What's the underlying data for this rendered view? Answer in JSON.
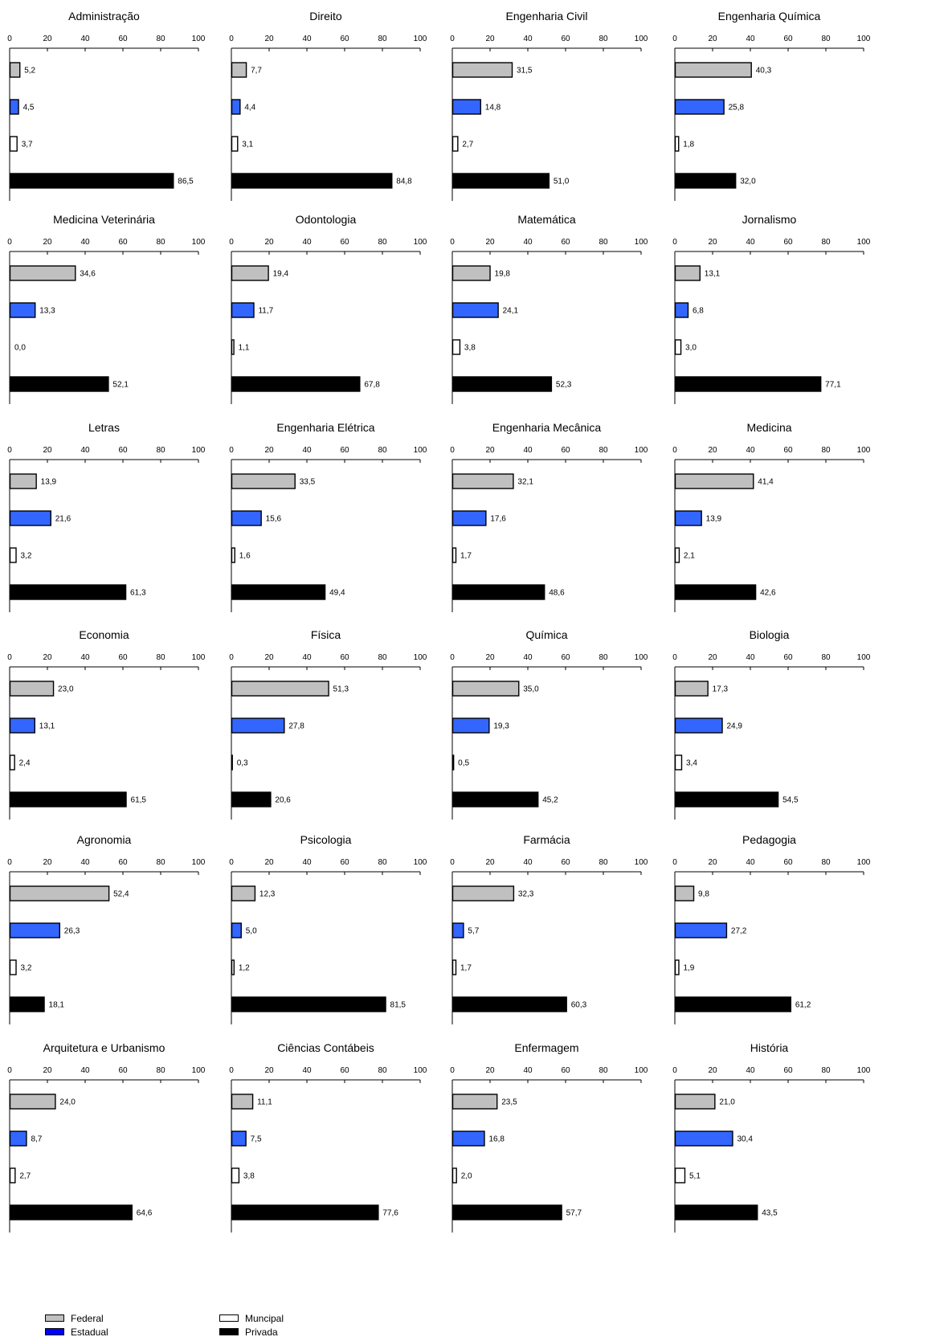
{
  "legend": {
    "federal": "Federal",
    "estadual": "Estadual",
    "municipal": "Muncipal",
    "privada": "Privada"
  },
  "colors": {
    "federal": "#c0c0c0",
    "estadual": "#3366ff",
    "municipal": "#ffffff",
    "privada": "#000000",
    "legend_estadual": "#0000ff"
  },
  "chart_data": [
    {
      "type": "bar",
      "orientation": "horizontal",
      "title": "Administração",
      "categories": [
        "Federal",
        "Estadual",
        "Municipal",
        "Privada"
      ],
      "values": [
        5.2,
        4.5,
        3.7,
        86.5
      ],
      "labels": [
        "5,2",
        "4,5",
        "3,7",
        "86,5"
      ],
      "xlim": [
        0,
        100
      ],
      "ticks": [
        "0",
        "20",
        "40",
        "60",
        "80",
        "100"
      ],
      "legend": "bottom-left"
    },
    {
      "type": "bar",
      "orientation": "horizontal",
      "title": "Direito",
      "categories": [
        "Federal",
        "Estadual",
        "Municipal",
        "Privada"
      ],
      "values": [
        7.7,
        4.4,
        3.1,
        84.8
      ],
      "labels": [
        "7,7",
        "4,4",
        "3,1",
        "84,8"
      ],
      "xlim": [
        0,
        100
      ],
      "ticks": [
        "0",
        "20",
        "40",
        "60",
        "80",
        "100"
      ]
    },
    {
      "type": "bar",
      "orientation": "horizontal",
      "title": "Engenharia Civil",
      "categories": [
        "Federal",
        "Estadual",
        "Municipal",
        "Privada"
      ],
      "values": [
        31.5,
        14.8,
        2.7,
        51.0
      ],
      "labels": [
        "31,5",
        "14,8",
        "2,7",
        "51,0"
      ],
      "xlim": [
        0,
        100
      ],
      "ticks": [
        "0",
        "20",
        "40",
        "60",
        "80",
        "100"
      ]
    },
    {
      "type": "bar",
      "orientation": "horizontal",
      "title": "Engenharia Química",
      "categories": [
        "Federal",
        "Estadual",
        "Municipal",
        "Privada"
      ],
      "values": [
        40.3,
        25.8,
        1.8,
        32.0
      ],
      "labels": [
        "40,3",
        "25,8",
        "1,8",
        "32,0"
      ],
      "xlim": [
        0,
        100
      ],
      "ticks": [
        "0",
        "20",
        "40",
        "60",
        "80",
        "100"
      ]
    },
    {
      "type": "bar",
      "orientation": "horizontal",
      "title": "Medicina Veterinária",
      "categories": [
        "Federal",
        "Estadual",
        "Municipal",
        "Privada"
      ],
      "values": [
        34.6,
        13.3,
        0.0,
        52.1
      ],
      "labels": [
        "34,6",
        "13,3",
        "0,0",
        "52,1"
      ],
      "xlim": [
        0,
        100
      ],
      "ticks": [
        "0",
        "20",
        "40",
        "60",
        "80",
        "100"
      ]
    },
    {
      "type": "bar",
      "orientation": "horizontal",
      "title": "Odontologia",
      "categories": [
        "Federal",
        "Estadual",
        "Municipal",
        "Privada"
      ],
      "values": [
        19.4,
        11.7,
        1.1,
        67.8
      ],
      "labels": [
        "19,4",
        "11,7",
        "1,1",
        "67,8"
      ],
      "xlim": [
        0,
        100
      ],
      "ticks": [
        "0",
        "20",
        "40",
        "60",
        "80",
        "100"
      ]
    },
    {
      "type": "bar",
      "orientation": "horizontal",
      "title": "Matemática",
      "categories": [
        "Federal",
        "Estadual",
        "Municipal",
        "Privada"
      ],
      "values": [
        19.8,
        24.1,
        3.8,
        52.3
      ],
      "labels": [
        "19,8",
        "24,1",
        "3,8",
        "52,3"
      ],
      "xlim": [
        0,
        100
      ],
      "ticks": [
        "0",
        "20",
        "40",
        "60",
        "80",
        "100"
      ]
    },
    {
      "type": "bar",
      "orientation": "horizontal",
      "title": "Jornalismo",
      "categories": [
        "Federal",
        "Estadual",
        "Municipal",
        "Privada"
      ],
      "values": [
        13.1,
        6.8,
        3.0,
        77.1
      ],
      "labels": [
        "13,1",
        "6,8",
        "3,0",
        "77,1"
      ],
      "xlim": [
        0,
        100
      ],
      "ticks": [
        "0",
        "20",
        "40",
        "60",
        "80",
        "100"
      ]
    },
    {
      "type": "bar",
      "orientation": "horizontal",
      "title": "Letras",
      "categories": [
        "Federal",
        "Estadual",
        "Municipal",
        "Privada"
      ],
      "values": [
        13.9,
        21.6,
        3.2,
        61.3
      ],
      "labels": [
        "13,9",
        "21,6",
        "3,2",
        "61,3"
      ],
      "xlim": [
        0,
        100
      ],
      "ticks": [
        "0",
        "20",
        "40",
        "60",
        "80",
        "100"
      ]
    },
    {
      "type": "bar",
      "orientation": "horizontal",
      "title": "Engenharia Elétrica",
      "categories": [
        "Federal",
        "Estadual",
        "Municipal",
        "Privada"
      ],
      "values": [
        33.5,
        15.6,
        1.6,
        49.4
      ],
      "labels": [
        "33,5",
        "15,6",
        "1,6",
        "49,4"
      ],
      "xlim": [
        0,
        100
      ],
      "ticks": [
        "0",
        "20",
        "40",
        "60",
        "80",
        "100"
      ]
    },
    {
      "type": "bar",
      "orientation": "horizontal",
      "title": "Engenharia Mecânica",
      "categories": [
        "Federal",
        "Estadual",
        "Municipal",
        "Privada"
      ],
      "values": [
        32.1,
        17.6,
        1.7,
        48.6
      ],
      "labels": [
        "32,1",
        "17,6",
        "1,7",
        "48,6"
      ],
      "xlim": [
        0,
        100
      ],
      "ticks": [
        "0",
        "20",
        "40",
        "60",
        "80",
        "100"
      ]
    },
    {
      "type": "bar",
      "orientation": "horizontal",
      "title": "Medicina",
      "categories": [
        "Federal",
        "Estadual",
        "Municipal",
        "Privada"
      ],
      "values": [
        41.4,
        13.9,
        2.1,
        42.6
      ],
      "labels": [
        "41,4",
        "13,9",
        "2,1",
        "42,6"
      ],
      "xlim": [
        0,
        100
      ],
      "ticks": [
        "0",
        "20",
        "40",
        "60",
        "80",
        "100"
      ]
    },
    {
      "type": "bar",
      "orientation": "horizontal",
      "title": "Economia",
      "categories": [
        "Federal",
        "Estadual",
        "Municipal",
        "Privada"
      ],
      "values": [
        23.0,
        13.1,
        2.4,
        61.5
      ],
      "labels": [
        "23,0",
        "13,1",
        "2,4",
        "61,5"
      ],
      "xlim": [
        0,
        100
      ],
      "ticks": [
        "0",
        "20",
        "40",
        "60",
        "80",
        "100"
      ]
    },
    {
      "type": "bar",
      "orientation": "horizontal",
      "title": "Física",
      "categories": [
        "Federal",
        "Estadual",
        "Municipal",
        "Privada"
      ],
      "values": [
        51.3,
        27.8,
        0.3,
        20.6
      ],
      "labels": [
        "51,3",
        "27,8",
        "0,3",
        "20,6"
      ],
      "xlim": [
        0,
        100
      ],
      "ticks": [
        "0",
        "20",
        "40",
        "60",
        "80",
        "100"
      ]
    },
    {
      "type": "bar",
      "orientation": "horizontal",
      "title": "Química",
      "categories": [
        "Federal",
        "Estadual",
        "Municipal",
        "Privada"
      ],
      "values": [
        35.0,
        19.3,
        0.5,
        45.2
      ],
      "labels": [
        "35,0",
        "19,3",
        "0,5",
        "45,2"
      ],
      "xlim": [
        0,
        100
      ],
      "ticks": [
        "0",
        "20",
        "40",
        "60",
        "80",
        "100"
      ]
    },
    {
      "type": "bar",
      "orientation": "horizontal",
      "title": "Biologia",
      "categories": [
        "Federal",
        "Estadual",
        "Municipal",
        "Privada"
      ],
      "values": [
        17.3,
        24.9,
        3.4,
        54.5
      ],
      "labels": [
        "17,3",
        "24,9",
        "3,4",
        "54,5"
      ],
      "xlim": [
        0,
        100
      ],
      "ticks": [
        "0",
        "20",
        "40",
        "60",
        "80",
        "100"
      ]
    },
    {
      "type": "bar",
      "orientation": "horizontal",
      "title": "Agronomia",
      "categories": [
        "Federal",
        "Estadual",
        "Municipal",
        "Privada"
      ],
      "values": [
        52.4,
        26.3,
        3.2,
        18.1
      ],
      "labels": [
        "52,4",
        "26,3",
        "3,2",
        "18,1"
      ],
      "xlim": [
        0,
        100
      ],
      "ticks": [
        "0",
        "20",
        "40",
        "60",
        "80",
        "100"
      ]
    },
    {
      "type": "bar",
      "orientation": "horizontal",
      "title": "Psicologia",
      "categories": [
        "Federal",
        "Estadual",
        "Municipal",
        "Privada"
      ],
      "values": [
        12.3,
        5.0,
        1.2,
        81.5
      ],
      "labels": [
        "12,3",
        "5,0",
        "1,2",
        "81,5"
      ],
      "xlim": [
        0,
        100
      ],
      "ticks": [
        "0",
        "20",
        "40",
        "60",
        "80",
        "100"
      ]
    },
    {
      "type": "bar",
      "orientation": "horizontal",
      "title": "Farmácia",
      "categories": [
        "Federal",
        "Estadual",
        "Municipal",
        "Privada"
      ],
      "values": [
        32.3,
        5.7,
        1.7,
        60.3
      ],
      "labels": [
        "32,3",
        "5,7",
        "1,7",
        "60,3"
      ],
      "xlim": [
        0,
        100
      ],
      "ticks": [
        "0",
        "20",
        "40",
        "60",
        "80",
        "100"
      ]
    },
    {
      "type": "bar",
      "orientation": "horizontal",
      "title": "Pedagogia",
      "categories": [
        "Federal",
        "Estadual",
        "Municipal",
        "Privada"
      ],
      "values": [
        9.8,
        27.2,
        1.9,
        61.2
      ],
      "labels": [
        "9,8",
        "27,2",
        "1,9",
        "61,2"
      ],
      "xlim": [
        0,
        100
      ],
      "ticks": [
        "0",
        "20",
        "40",
        "60",
        "80",
        "100"
      ]
    },
    {
      "type": "bar",
      "orientation": "horizontal",
      "title": "Arquitetura e Urbanismo",
      "categories": [
        "Federal",
        "Estadual",
        "Municipal",
        "Privada"
      ],
      "values": [
        24.0,
        8.7,
        2.7,
        64.6
      ],
      "labels": [
        "24,0",
        "8,7",
        "2,7",
        "64,6"
      ],
      "xlim": [
        0,
        100
      ],
      "ticks": [
        "0",
        "20",
        "40",
        "60",
        "80",
        "100"
      ]
    },
    {
      "type": "bar",
      "orientation": "horizontal",
      "title": "Ciências Contábeis",
      "categories": [
        "Federal",
        "Estadual",
        "Municipal",
        "Privada"
      ],
      "values": [
        11.1,
        7.5,
        3.8,
        77.6
      ],
      "labels": [
        "11,1",
        "7,5",
        "3,8",
        "77,6"
      ],
      "xlim": [
        0,
        100
      ],
      "ticks": [
        "0",
        "20",
        "40",
        "60",
        "80",
        "100"
      ]
    },
    {
      "type": "bar",
      "orientation": "horizontal",
      "title": "Enfermagem",
      "categories": [
        "Federal",
        "Estadual",
        "Municipal",
        "Privada"
      ],
      "values": [
        23.5,
        16.8,
        2.0,
        57.7
      ],
      "labels": [
        "23,5",
        "16,8",
        "2,0",
        "57,7"
      ],
      "xlim": [
        0,
        100
      ],
      "ticks": [
        "0",
        "20",
        "40",
        "60",
        "80",
        "100"
      ]
    },
    {
      "type": "bar",
      "orientation": "horizontal",
      "title": "História",
      "categories": [
        "Federal",
        "Estadual",
        "Municipal",
        "Privada"
      ],
      "values": [
        21.0,
        30.4,
        5.1,
        43.5
      ],
      "labels": [
        "21,0",
        "30,4",
        "5,1",
        "43,5"
      ],
      "xlim": [
        0,
        100
      ],
      "ticks": [
        "0",
        "20",
        "40",
        "60",
        "80",
        "100"
      ]
    }
  ]
}
